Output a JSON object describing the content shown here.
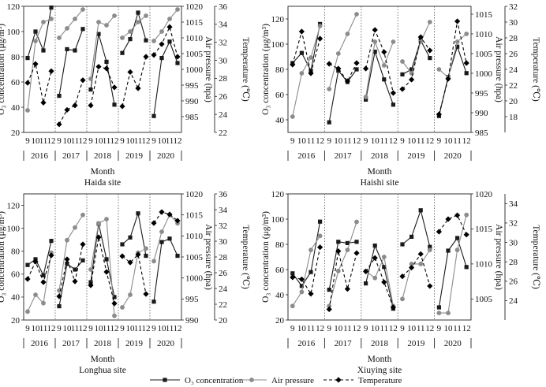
{
  "chart_data": [
    {
      "type": "line",
      "title": "Haida site",
      "xlabel": "Month",
      "ylabel": "O₃ concentration (μg/m³)",
      "y2label": "Air pressure (hpa)",
      "y3label": "Temperature (℃)",
      "ylim": [
        20,
        120
      ],
      "yticks": [
        20,
        40,
        60,
        80,
        100,
        120
      ],
      "y2lim": [
        980,
        1020
      ],
      "y2ticks": [
        985,
        990,
        995,
        1000,
        1005,
        1010,
        1015,
        1020
      ],
      "y3lim": [
        22,
        36
      ],
      "y3ticks": [
        22,
        24,
        26,
        28,
        30,
        32,
        34,
        36
      ],
      "x_month_labels": [
        "9",
        "10",
        "11",
        "12"
      ],
      "years": [
        "2016",
        "2017",
        "2018",
        "2019",
        "2020"
      ],
      "series": [
        {
          "name": "O₃ concentration",
          "axis": "left",
          "values": [
            79,
            100,
            85,
            119,
            49,
            86,
            85,
            102,
            54,
            98,
            76,
            42,
            83,
            94,
            115,
            93,
            33,
            79,
            92,
            75
          ]
        },
        {
          "name": "Air pressure",
          "axis": "right1",
          "values": [
            987,
            1009,
            1015,
            1016,
            1010,
            1013,
            1016,
            1019,
            997,
            1015,
            1014,
            1017,
            1010,
            1012,
            1015,
            1017,
            1009,
            1012,
            1016,
            1019
          ]
        },
        {
          "name": "Temperature",
          "axis": "right2",
          "values": [
            27.5,
            29.6,
            25.3,
            28.8,
            22.9,
            24.5,
            25.0,
            27.8,
            25.0,
            29.3,
            29.1,
            27.0,
            24.9,
            28.7,
            26.9,
            30.4,
            30.6,
            31.8,
            33.7,
            30.4
          ]
        }
      ]
    },
    {
      "type": "line",
      "title": "Haishi site",
      "xlabel": "Month",
      "ylabel": "O₃ concentration (μg/m³)",
      "y2label": "Air pressure (hpa)",
      "y3label": "Temperature (℃)",
      "ylim": [
        30,
        130
      ],
      "yticks": [
        40,
        60,
        80,
        100,
        120
      ],
      "y2lim": [
        985,
        1017
      ],
      "y2ticks": [
        985,
        990,
        995,
        1000,
        1005,
        1010,
        1015
      ],
      "y3lim": [
        16,
        32
      ],
      "y3ticks": [
        18,
        20,
        22,
        24,
        26,
        28,
        30,
        32
      ],
      "x_month_labels": [
        "9",
        "10",
        "11",
        "12"
      ],
      "years": [
        "2016",
        "2017",
        "2018",
        "2019",
        "2020"
      ],
      "series": [
        {
          "name": "O₃ concentration",
          "axis": "left",
          "values": [
            85,
            93,
            79,
            116,
            38,
            79,
            70,
            80,
            56,
            94,
            72,
            52,
            76,
            80,
            103,
            89,
            43,
            74,
            98,
            77
          ]
        },
        {
          "name": "Air pressure",
          "axis": "right1",
          "values": [
            989,
            1000,
            1004,
            1012,
            996,
            1005,
            1010,
            1015,
            994,
            1008,
            1002,
            1008,
            1003,
            1000,
            1008,
            1013,
            1001,
            999,
            1008,
            1010
          ]
        },
        {
          "name": "Temperature",
          "axis": "right2",
          "values": [
            24.6,
            28.8,
            23.5,
            27.9,
            24.7,
            24.1,
            22.5,
            24.8,
            24.1,
            29.0,
            26.2,
            21.0,
            21.5,
            22.7,
            28.1,
            26.4,
            18.3,
            22.8,
            30.1,
            24.8
          ]
        }
      ]
    },
    {
      "type": "line",
      "title": "Longhua site",
      "xlabel": "Month",
      "ylabel": "O₃ concentration (μg/m³)",
      "y2label": "Air pressure (hpa)",
      "y3label": "Temperature (℃)",
      "ylim": [
        20,
        130
      ],
      "yticks": [
        20,
        40,
        60,
        80,
        100,
        120
      ],
      "y2lim": [
        990,
        1020
      ],
      "y2ticks": [
        990,
        995,
        1000,
        1005,
        1010,
        1015,
        1020
      ],
      "y3lim": [
        20,
        36
      ],
      "y3ticks": [
        20,
        22,
        24,
        26,
        28,
        30,
        32,
        34,
        36
      ],
      "x_month_labels": [
        "9",
        "10",
        "11",
        "12"
      ],
      "years": [
        "2016",
        "2017",
        "2018",
        "2019",
        "2020"
      ],
      "series": [
        {
          "name": "O₃ concentration",
          "axis": "left",
          "values": [
            68,
            73,
            59,
            89,
            32,
            69,
            64,
            72,
            53,
            104,
            73,
            40,
            86,
            92,
            113,
            76,
            36,
            88,
            91,
            76
          ]
        },
        {
          "name": "Air pressure",
          "axis": "right1",
          "values": [
            992,
            996,
            994,
            1006,
            997,
            1009,
            1012,
            1015,
            1002,
            1013,
            1014,
            991,
            993,
            996,
            1006,
            1007,
            1004,
            1011,
            1015,
            1013
          ]
        },
        {
          "name": "Temperature",
          "axis": "right2",
          "values": [
            25.2,
            27.4,
            24.8,
            28.2,
            23.0,
            27.7,
            24.9,
            29.6,
            24.4,
            30.5,
            26.1,
            22.1,
            28.1,
            27.3,
            28.3,
            23.3,
            32.3,
            33.7,
            33.4,
            32.6
          ]
        }
      ]
    },
    {
      "type": "line",
      "title": "Xiuying site",
      "xlabel": "Month",
      "ylabel": "O₃ concentration (μg/m³)",
      "y2label": "Air pressure (hpa)",
      "y3label": "Temperature (℃)",
      "ylim": [
        20,
        120
      ],
      "yticks": [
        20,
        40,
        60,
        80,
        100,
        120
      ],
      "y2lim": [
        1002,
        1020
      ],
      "y2ticks": [
        1005,
        1010,
        1015,
        1020
      ],
      "y3lim": [
        22,
        35
      ],
      "y3ticks": [
        24,
        26,
        28,
        30,
        32,
        34
      ],
      "x_month_labels": [
        "9",
        "10",
        "11",
        "12"
      ],
      "years": [
        "2016",
        "2017",
        "2018",
        "2019",
        "2020"
      ],
      "series": [
        {
          "name": "O₃ concentration",
          "axis": "left",
          "values": [
            57,
            47,
            58,
            98,
            44,
            82,
            81,
            82,
            49,
            79,
            62,
            29,
            80,
            86,
            107,
            78,
            30,
            75,
            85,
            62
          ]
        },
        {
          "name": "Air pressure",
          "axis": "right1",
          "values": [
            1004,
            1006,
            1012,
            1014,
            1004,
            1009,
            1012,
            1016,
            1009,
            1008,
            1011,
            1004,
            1005,
            1010,
            1010,
            1012,
            1003,
            1003,
            1012,
            1017
          ]
        },
        {
          "name": "Temperature",
          "axis": "right2",
          "values": [
            26.4,
            26.2,
            24.7,
            29.5,
            23.1,
            29.1,
            25.2,
            28.9,
            27.0,
            28.4,
            25.9,
            23.3,
            26.5,
            27.4,
            28.8,
            25.5,
            31.1,
            32.4,
            32.8,
            30.8
          ]
        }
      ]
    }
  ],
  "legend": [
    {
      "label": "O₃ concentration",
      "color": "#1a1a1a",
      "marker": "square",
      "dash": "solid"
    },
    {
      "label": "Air pressure",
      "color": "#8c8c8c",
      "marker": "circle",
      "dash": "solid"
    },
    {
      "label": "Temperature",
      "color": "#000000",
      "marker": "diamond",
      "dash": "dashed"
    }
  ]
}
